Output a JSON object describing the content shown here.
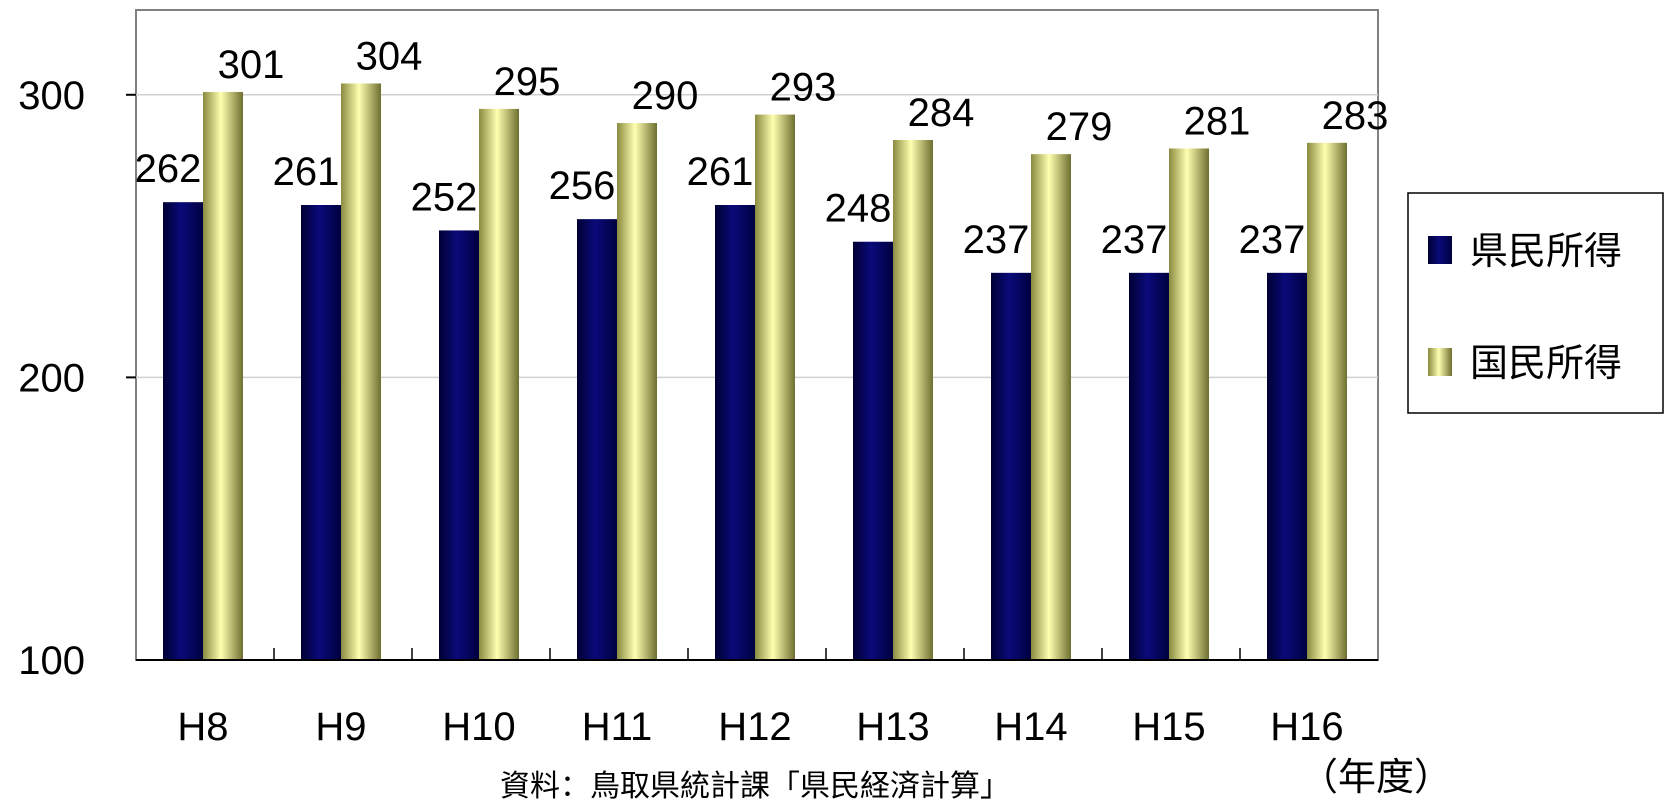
{
  "chart_data": {
    "type": "bar",
    "categories": [
      "H8",
      "H9",
      "H10",
      "H11",
      "H12",
      "H13",
      "H14",
      "H15",
      "H16"
    ],
    "series": [
      {
        "name": "県民所得",
        "values": [
          262,
          261,
          252,
          256,
          261,
          248,
          237,
          237,
          237
        ]
      },
      {
        "name": "国民所得",
        "values": [
          301,
          304,
          295,
          290,
          293,
          284,
          279,
          281,
          283
        ]
      }
    ],
    "ylim": [
      100,
      330
    ],
    "yticks": [
      100,
      200,
      300
    ],
    "x_unit_label": "（年度）",
    "source": "資料：鳥取県統計課「県民経済計算」",
    "grid": true,
    "legend_position": "right",
    "colors": {
      "series1": "#0a0a6e",
      "series2": "#f4f4a0"
    }
  }
}
